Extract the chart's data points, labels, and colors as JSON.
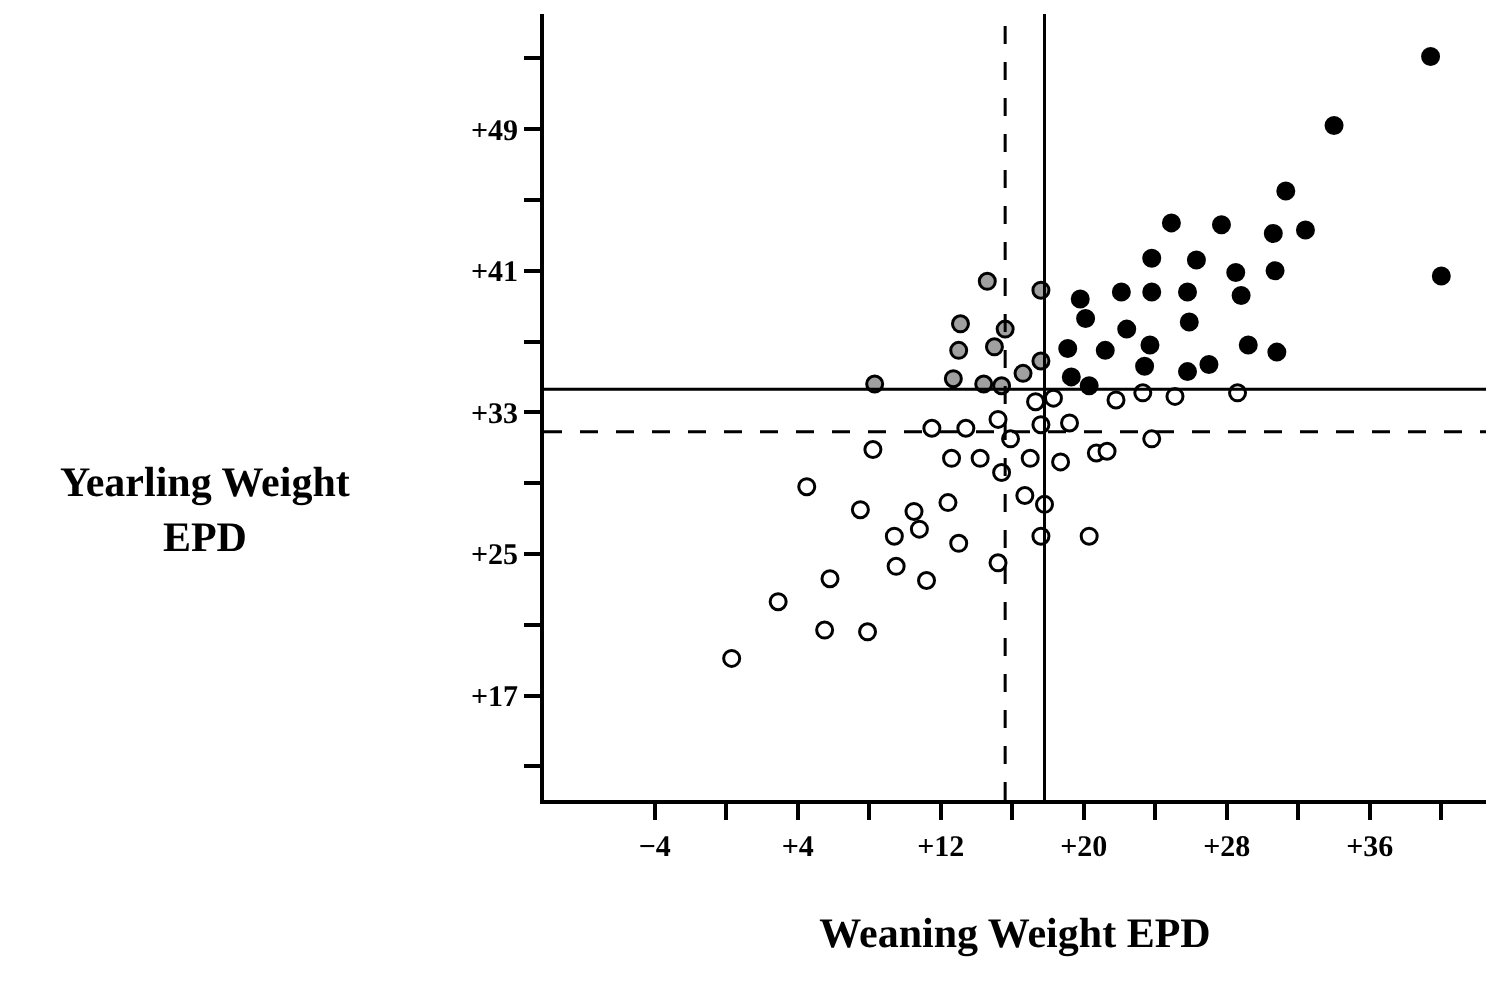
{
  "chart_data": {
    "type": "scatter",
    "xlabel": "Weaning Weight EPD",
    "ylabel": "Yearling Weight\nEPD",
    "series": [
      {
        "color": "#000000",
        "x": [
          39.4,
          34.0,
          31.3,
          32.4,
          30.6,
          24.9,
          27.7,
          40.0,
          23.8,
          26.3,
          28.5,
          30.7,
          19.8,
          22.1,
          23.8,
          25.8,
          28.8,
          20.1,
          25.9,
          22.4,
          19.1,
          21.2,
          23.7,
          29.2,
          30.8,
          23.4,
          27.0,
          25.8,
          19.3,
          20.3
        ],
        "values": [
          53.1,
          49.2,
          45.5,
          43.3,
          43.1,
          43.7,
          43.6,
          40.7,
          41.7,
          41.6,
          40.9,
          41.0,
          39.4,
          39.8,
          39.8,
          39.8,
          39.6,
          38.3,
          38.1,
          37.7,
          36.6,
          36.5,
          36.8,
          36.8,
          36.4,
          35.6,
          35.7,
          35.3,
          35.0,
          34.5
        ]
      },
      {
        "color": "#ffffff",
        "x": [
          0.3,
          2.9,
          5.5,
          5.8,
          7.9,
          4.5,
          7.5,
          8.2,
          9.4,
          9.5,
          10.5,
          10.8,
          11.2,
          11.5,
          12.4,
          12.6,
          13.0,
          13.4,
          14.2,
          15.2,
          15.4,
          15.2,
          15.9,
          17.0,
          17.3,
          16.7,
          17.6,
          17.8,
          17.6,
          18.3,
          19.2,
          18.7,
          20.3,
          20.7,
          21.3,
          21.8,
          23.3,
          23.8,
          25.1,
          28.6
        ],
        "values": [
          19.1,
          22.3,
          20.7,
          23.6,
          20.6,
          28.8,
          27.5,
          30.9,
          26.0,
          24.3,
          27.4,
          26.4,
          23.5,
          32.1,
          27.9,
          30.4,
          25.6,
          32.1,
          30.4,
          32.6,
          29.6,
          24.5,
          31.5,
          30.4,
          33.6,
          28.3,
          32.3,
          27.8,
          26.0,
          33.8,
          32.4,
          30.2,
          26.0,
          30.7,
          30.8,
          33.7,
          34.1,
          31.5,
          33.9,
          34.1
        ]
      },
      {
        "color": "#a0a0a0",
        "x": [
          14.6,
          17.6,
          13.1,
          15.6,
          13.0,
          15.0,
          17.6,
          16.6,
          14.4,
          15.4,
          8.3,
          12.7
        ],
        "values": [
          40.4,
          39.9,
          38.0,
          37.7,
          36.5,
          36.7,
          35.9,
          35.2,
          34.6,
          34.5,
          34.6,
          34.9
        ]
      }
    ],
    "xlim": [
      -10.2,
      42.5
    ],
    "xticks": [
      {
        "value": -4,
        "label": "−4"
      },
      {
        "value": 0,
        "label": null
      },
      {
        "value": 4,
        "label": "+4"
      },
      {
        "value": 8,
        "label": null
      },
      {
        "value": 12,
        "label": "+12"
      },
      {
        "value": 16,
        "label": null
      },
      {
        "value": 20,
        "label": "+20"
      },
      {
        "value": 24,
        "label": null
      },
      {
        "value": 28,
        "label": "+28"
      },
      {
        "value": 32,
        "label": null
      },
      {
        "value": 36,
        "label": "+36"
      },
      {
        "value": 40,
        "label": null
      }
    ],
    "ylim": [
      11.1,
      55.5
    ],
    "yticks": [
      {
        "value": 13,
        "label": null
      },
      {
        "value": 17,
        "label": "+17"
      },
      {
        "value": 21,
        "label": null
      },
      {
        "value": 25,
        "label": "+25"
      },
      {
        "value": 29,
        "label": null
      },
      {
        "value": 33,
        "label": "+33"
      },
      {
        "value": 37,
        "label": null
      },
      {
        "value": 41,
        "label": "+41"
      },
      {
        "value": 45,
        "label": null
      },
      {
        "value": 49,
        "label": "+49"
      },
      {
        "value": 53,
        "label": null
      }
    ],
    "ref_lines": [
      {
        "axis": "x",
        "value": 17.8,
        "line_style": "solid"
      },
      {
        "axis": "x",
        "value": 15.6,
        "line_style": "dashed"
      },
      {
        "axis": "y",
        "value": 34.3,
        "line_style": "solid"
      },
      {
        "axis": "y",
        "value": 31.9,
        "line_style": "dashed"
      }
    ],
    "marker": "circle"
  }
}
